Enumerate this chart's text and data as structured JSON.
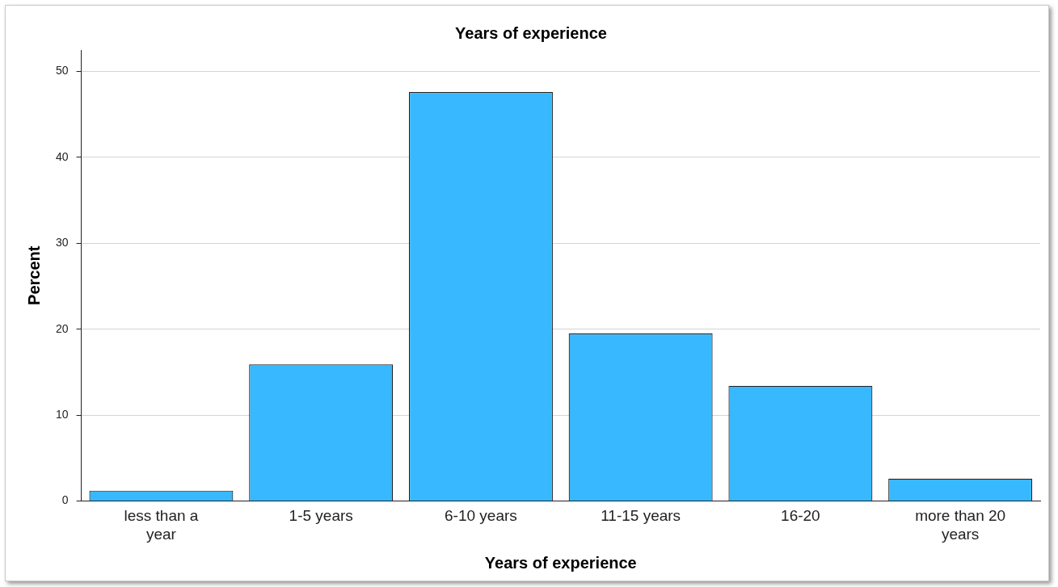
{
  "chart_data": {
    "type": "bar",
    "title": "Years of experience",
    "xlabel": "Years of experience",
    "ylabel": "Percent",
    "categories": [
      "less than a year",
      "1-5 years",
      "6-10 years",
      "11-15 years",
      "16-20",
      "more than 20 years"
    ],
    "values": [
      1.2,
      15.9,
      47.6,
      19.5,
      13.4,
      2.6
    ],
    "color": "#38b8ff",
    "ylim": [
      0,
      52.5
    ],
    "yticks": [
      0,
      10,
      20,
      30,
      40,
      50
    ],
    "grid": "y",
    "legend": false
  }
}
